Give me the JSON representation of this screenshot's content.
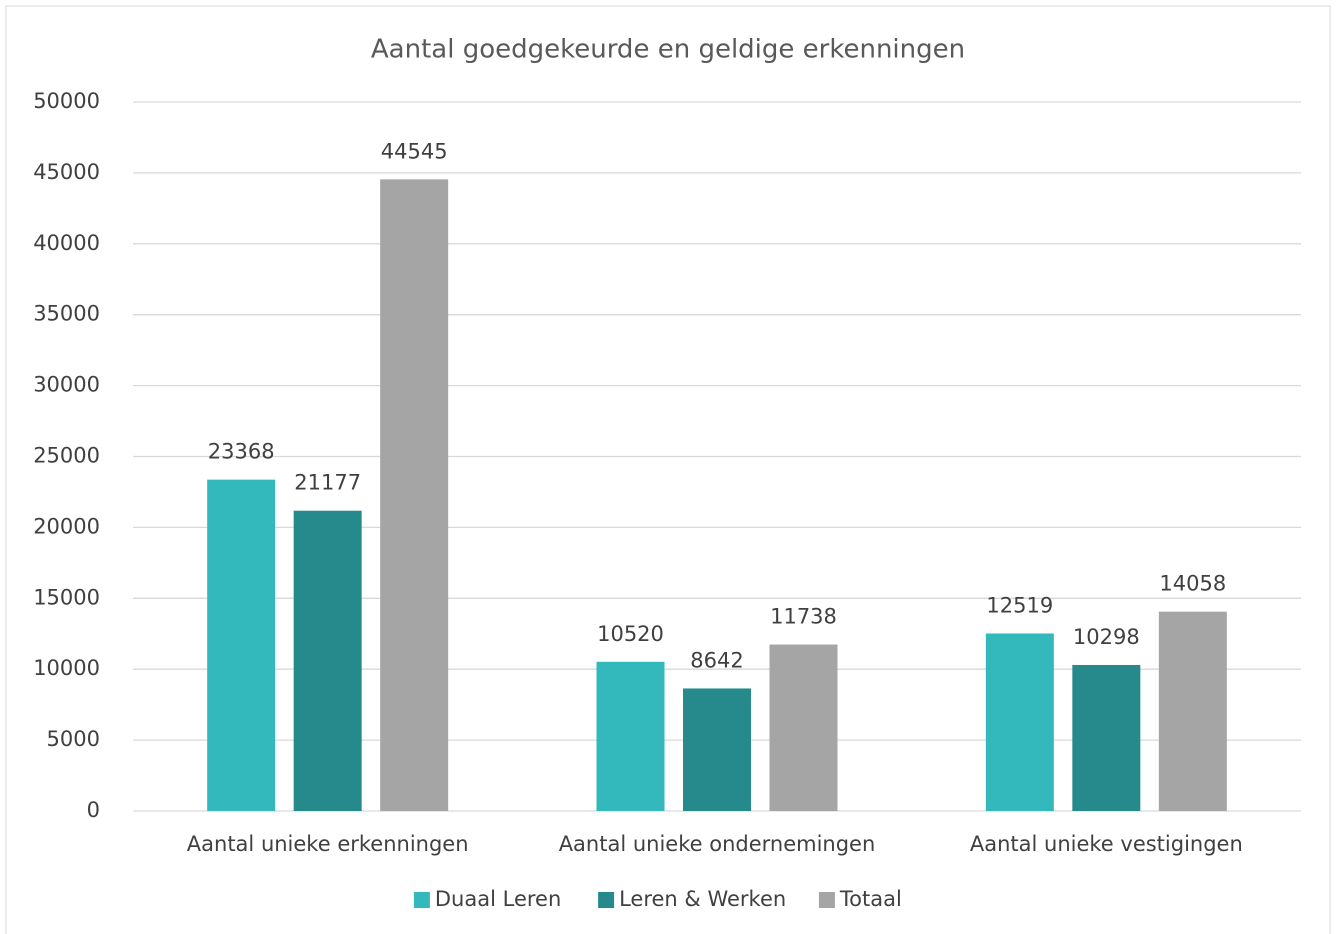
{
  "chart_data": {
    "type": "bar",
    "title": "Aantal goedgekeurde en geldige erkenningen",
    "categories": [
      "Aantal unieke erkenningen",
      "Aantal unieke ondernemingen",
      "Aantal unieke vestigingen"
    ],
    "series": [
      {
        "name": "Duaal Leren",
        "color": "#33b8bc",
        "values": [
          23368,
          10520,
          12519
        ]
      },
      {
        "name": "Leren & Werken",
        "color": "#268a8c",
        "values": [
          21177,
          8642,
          10298
        ]
      },
      {
        "name": "Totaal",
        "color": "#a5a5a5",
        "values": [
          44545,
          11738,
          14058
        ]
      }
    ],
    "ylim": [
      0,
      50000
    ],
    "yticks": [
      0,
      5000,
      10000,
      15000,
      20000,
      25000,
      30000,
      35000,
      40000,
      45000,
      50000
    ],
    "grid": true,
    "legend": "bottom",
    "data_labels": true
  }
}
